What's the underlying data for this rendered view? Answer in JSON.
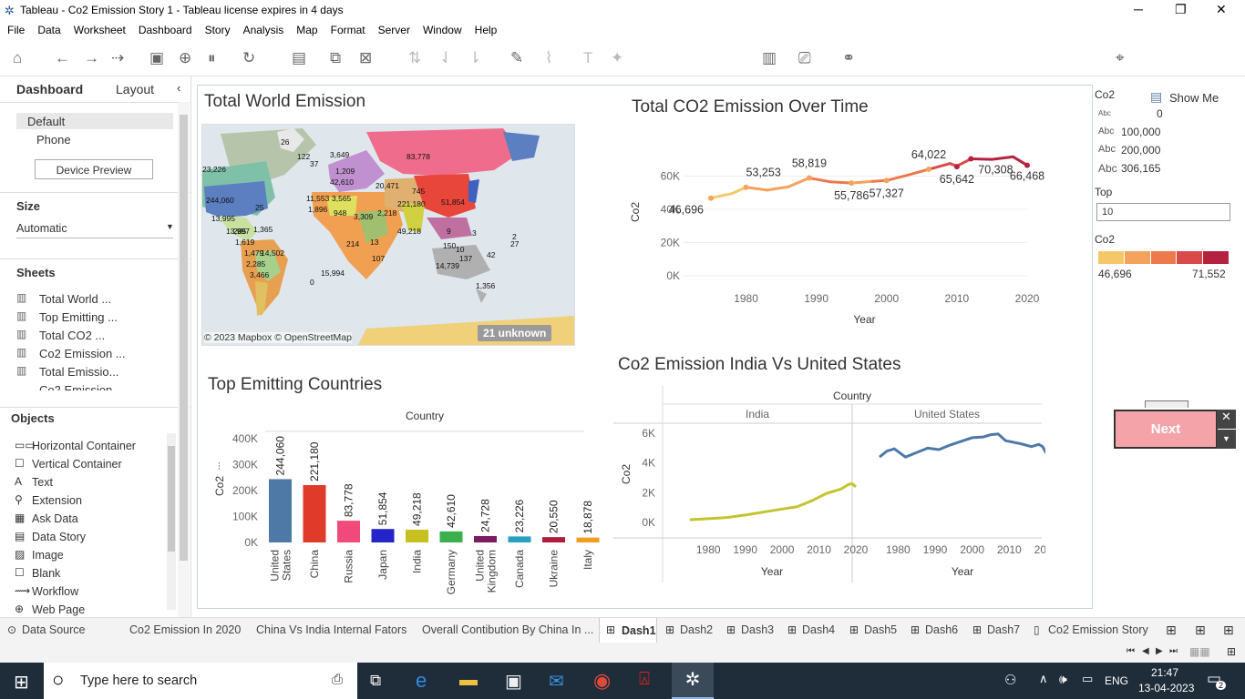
{
  "window": {
    "title": "Tableau - Co2 Emission Story 1 - Tableau license expires in 4 days"
  },
  "menu": [
    "File",
    "Data",
    "Worksheet",
    "Dashboard",
    "Story",
    "Analysis",
    "Map",
    "Format",
    "Server",
    "Window",
    "Help"
  ],
  "toolbar": {
    "show_me": "Show Me"
  },
  "left_pane": {
    "tab_dashboard": "Dashboard",
    "tab_layout": "Layout",
    "devices": [
      "Default",
      "Phone"
    ],
    "device_preview": "Device Preview",
    "size_title": "Size",
    "size_value": "Automatic",
    "sheets_title": "Sheets",
    "sheets": [
      "Total World ...",
      "Top Emitting ...",
      "Total CO2 ...",
      "Co2 Emission ...",
      "Total Emissio...",
      "Co2 Emission"
    ],
    "objects_title": "Objects",
    "objects": [
      "Horizontal Container",
      "Vertical Container",
      "Text",
      "Extension",
      "Ask Data",
      "Data Story",
      "Image",
      "Blank",
      "Workflow",
      "Web Page"
    ]
  },
  "map": {
    "title": "Total World Emission",
    "labels": [
      "26",
      "122",
      "37",
      "3,649",
      "83,778",
      "23,226",
      "1,209",
      "42,610",
      "20,471",
      "244,060",
      "745",
      "11,553",
      "3,565",
      "221,180",
      "51,854",
      "1,896",
      "948",
      "2,218",
      "25",
      "3,309",
      "13,995",
      "285",
      "49,218",
      "13,997",
      "1,365",
      "1,619",
      "1,479",
      "14,502",
      "2,285",
      "3,466",
      "214",
      "13",
      "15,994",
      "107",
      "14,739",
      "1,356",
      "0",
      "9",
      "3",
      "2",
      "27",
      "42",
      "137",
      "150",
      "10"
    ],
    "attribution": "© 2023 Mapbox © OpenStreetMap",
    "unknown": "21 unknown"
  },
  "line_chart": {
    "title": "Total CO2 Emission Over Time",
    "ylabel": "Co2",
    "xlabel": "Year",
    "yticks": [
      "60K",
      "40K",
      "20K",
      "0K"
    ],
    "xticks": [
      "1980",
      "1990",
      "2000",
      "2010",
      "2020"
    ],
    "labels": [
      "46,696",
      "53,253",
      "58,819",
      "55,786",
      "64,022",
      "57,327",
      "65,642",
      "70,308",
      "66,468"
    ]
  },
  "bar_chart": {
    "title": "Top Emitting Countries",
    "header": "Country",
    "ylabel": "Co2",
    "yticks": [
      "400K",
      "300K",
      "200K",
      "100K",
      "0K"
    ],
    "countries": [
      "United States",
      "China",
      "Russia",
      "Japan",
      "India",
      "Germany",
      "United Kingdom",
      "Canada",
      "Ukraine",
      "Italy"
    ],
    "value_labels": [
      "244,060",
      "221,180",
      "83,778",
      "51,854",
      "49,218",
      "42,610",
      "24,728",
      "23,226",
      "20,550",
      "18,878"
    ],
    "colors": [
      "#4e79a7",
      "#e03a2b",
      "#f04a7a",
      "#2424c8",
      "#c8c020",
      "#3bb04c",
      "#7a1c5e",
      "#2aa0c0",
      "#b01c3c",
      "#f0a020"
    ]
  },
  "india_us": {
    "title": "Co2 Emission India Vs United States",
    "header": "Country",
    "panels": [
      "India",
      "United States"
    ],
    "ylabel": "Co2",
    "xlabel": "Year",
    "yticks": [
      "6K",
      "4K",
      "2K",
      "0K"
    ],
    "xticks": [
      "1980",
      "1990",
      "2000",
      "2010",
      "2020"
    ]
  },
  "legend": {
    "size_title": "Co2",
    "size_items": [
      "0",
      "100,000",
      "200,000",
      "306,165"
    ],
    "size_prefix": "Abc",
    "top_title": "Top",
    "top_value": "10",
    "color_title": "Co2",
    "color_min": "46,696",
    "color_max": "71,552",
    "colors": [
      "#f5c76a",
      "#f3a35c",
      "#ec7a4e",
      "#d94a4a",
      "#b52240"
    ]
  },
  "next_button": "Next",
  "tabs": [
    "Data Source",
    "Co2 Emission In 2020",
    "China Vs India Internal Fators",
    "Overall Contibution By China In ...",
    "Dash1",
    "Dash2",
    "Dash3",
    "Dash4",
    "Dash5",
    "Dash6",
    "Dash7",
    "Co2 Emission Story"
  ],
  "taskbar": {
    "search_placeholder": "Type here to search",
    "lang": "ENG",
    "time": "21:47",
    "date": "13-04-2023",
    "notif": "2"
  }
}
